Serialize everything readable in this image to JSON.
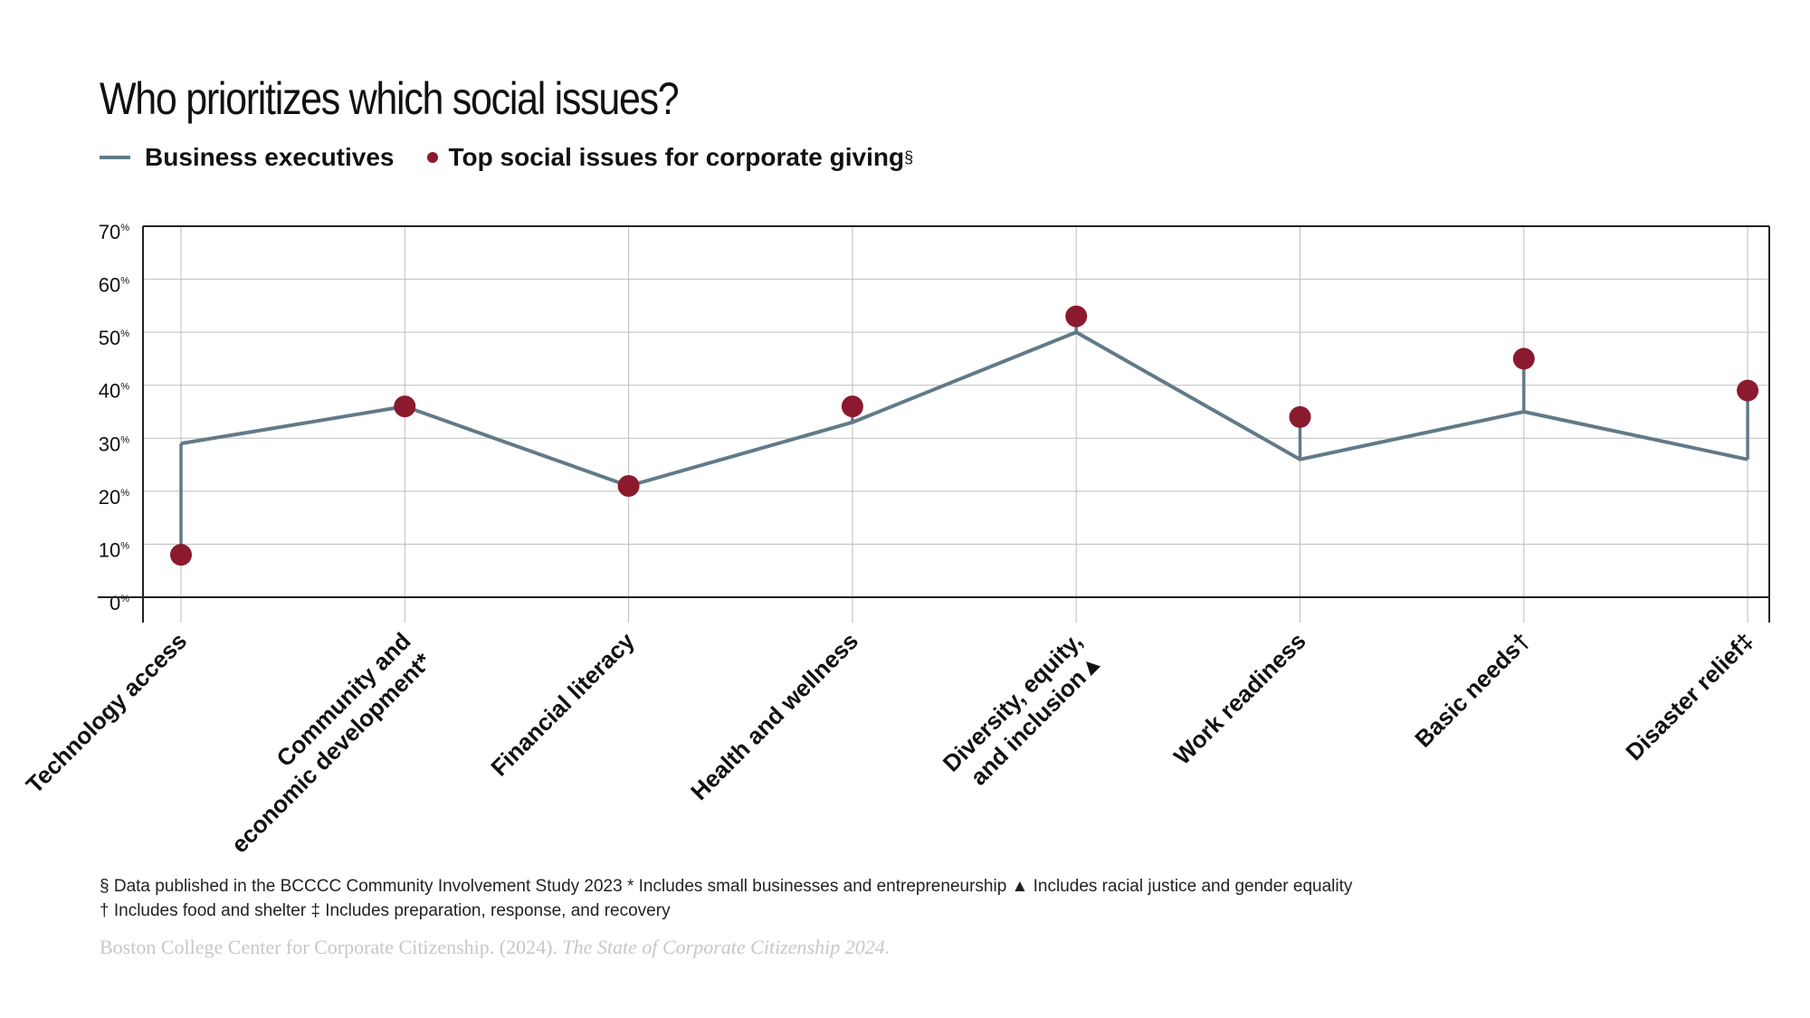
{
  "title": "Who prioritizes which social issues?",
  "legend": {
    "line_label": "Business executives",
    "dot_label": "Top social issues for corporate giving",
    "dot_marker": "§"
  },
  "footnotes": {
    "line1": "§ Data published in the BCCCC Community Involvement Study 2023  * Includes small businesses and entrepreneurship  ▲ Includes racial justice and gender equality",
    "line2": "† Includes food and shelter  ‡ Includes preparation, response, and recovery"
  },
  "source": {
    "text": "Boston College Center for Corporate Citizenship. (2024). ",
    "italic": "The State of Corporate Citizenship 2024."
  },
  "colors": {
    "line": "#627a88",
    "dot": "#8b1a2e",
    "grid": "#bdbdbd",
    "axis": "#222222"
  },
  "chart_data": {
    "type": "line",
    "categories": [
      [
        "Technology access"
      ],
      [
        "Community and",
        "economic development*"
      ],
      [
        "Financial literacy"
      ],
      [
        "Health and wellness"
      ],
      [
        "Diversity, equity,",
        "and inclusion▲"
      ],
      [
        "Work readiness"
      ],
      [
        "Basic needs†"
      ],
      [
        "Disaster relief‡"
      ]
    ],
    "series": [
      {
        "name": "Business executives",
        "type": "line",
        "values": [
          29,
          36,
          21,
          33,
          50,
          26,
          35,
          26
        ]
      },
      {
        "name": "Top social issues for corporate giving",
        "type": "scatter",
        "values": [
          8,
          36,
          21,
          36,
          53,
          34,
          45,
          39
        ]
      }
    ],
    "ylim": [
      0,
      70
    ],
    "yticks": [
      0,
      10,
      20,
      30,
      40,
      50,
      60,
      70
    ],
    "ytick_suffix": "%",
    "grid": true
  }
}
